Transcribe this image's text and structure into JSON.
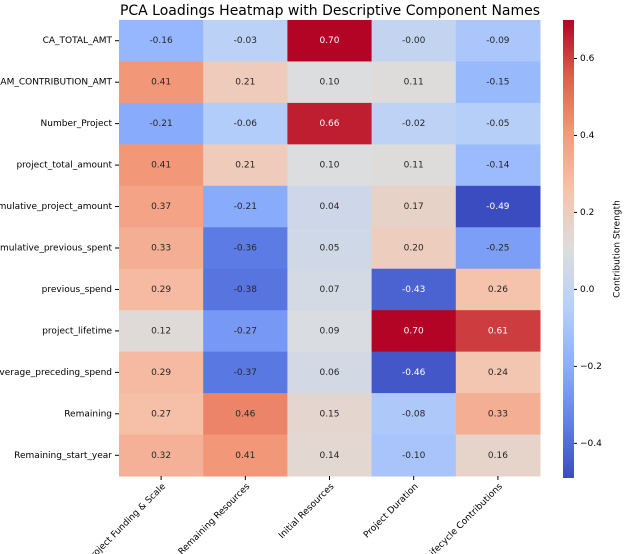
{
  "chart_data": {
    "type": "heatmap",
    "title": "PCA Loadings Heatmap with Descriptive Component Names",
    "rows": [
      "CA_TOTAL_AMT",
      "PROGRAM_CONTRIBUTION_AMT",
      "Number_Project",
      "project_total_amount",
      "cummulative_project_amount",
      "cummulative_previous_spent",
      "previous_spend",
      "project_lifetime",
      "average_preceding_spend",
      "Remaining",
      "Remaining_start_year"
    ],
    "columns": [
      "Project Funding & Scale",
      "Remaining Resources",
      "Initial Resources",
      "Project Duration",
      "Lifecycle Contributions"
    ],
    "values": [
      [
        -0.16,
        -0.03,
        0.7,
        0,
        -0.09
      ],
      [
        0.41,
        0.21,
        0.1,
        0.11,
        -0.15
      ],
      [
        -0.21,
        -0.06,
        0.66,
        -0.02,
        -0.05
      ],
      [
        0.41,
        0.21,
        0.1,
        0.11,
        -0.14
      ],
      [
        0.37,
        -0.21,
        0.04,
        0.17,
        -0.49
      ],
      [
        0.33,
        -0.36,
        0.05,
        0.2,
        -0.25
      ],
      [
        0.29,
        -0.38,
        0.07,
        -0.43,
        0.26
      ],
      [
        0.12,
        -0.27,
        0.09,
        0.7,
        0.61
      ],
      [
        0.29,
        -0.37,
        0.06,
        -0.46,
        0.24
      ],
      [
        0.27,
        0.46,
        0.15,
        -0.08,
        0.33
      ],
      [
        0.32,
        0.41,
        0.14,
        -0.1,
        0.16
      ]
    ],
    "value_labels": [
      [
        "-0.16",
        "-0.03",
        "0.70",
        "-0.00",
        "-0.09"
      ],
      [
        "0.41",
        "0.21",
        "0.10",
        "0.11",
        "-0.15"
      ],
      [
        "-0.21",
        "-0.06",
        "0.66",
        "-0.02",
        "-0.05"
      ],
      [
        "0.41",
        "0.21",
        "0.10",
        "0.11",
        "-0.14"
      ],
      [
        "0.37",
        "-0.21",
        "0.04",
        "0.17",
        "-0.49"
      ],
      [
        "0.33",
        "-0.36",
        "0.05",
        "0.20",
        "-0.25"
      ],
      [
        "0.29",
        "-0.38",
        "0.07",
        "-0.43",
        "0.26"
      ],
      [
        "0.12",
        "-0.27",
        "0.09",
        "0.70",
        "0.61"
      ],
      [
        "0.29",
        "-0.37",
        "0.06",
        "-0.46",
        "0.24"
      ],
      [
        "0.27",
        "0.46",
        "0.15",
        "-0.08",
        "0.33"
      ],
      [
        "0.32",
        "0.41",
        "0.14",
        "-0.10",
        "0.16"
      ]
    ],
    "colormap": "coolwarm",
    "clim": [
      -0.49,
      0.7
    ],
    "cticks": [
      {
        "value": -0.4,
        "label": "−0.4"
      },
      {
        "value": -0.2,
        "label": "−0.2"
      },
      {
        "value": 0,
        "label": "0.0"
      },
      0.2,
      0.4,
      0.6
    ],
    "colorbar_label": "Contribution Strength"
  }
}
